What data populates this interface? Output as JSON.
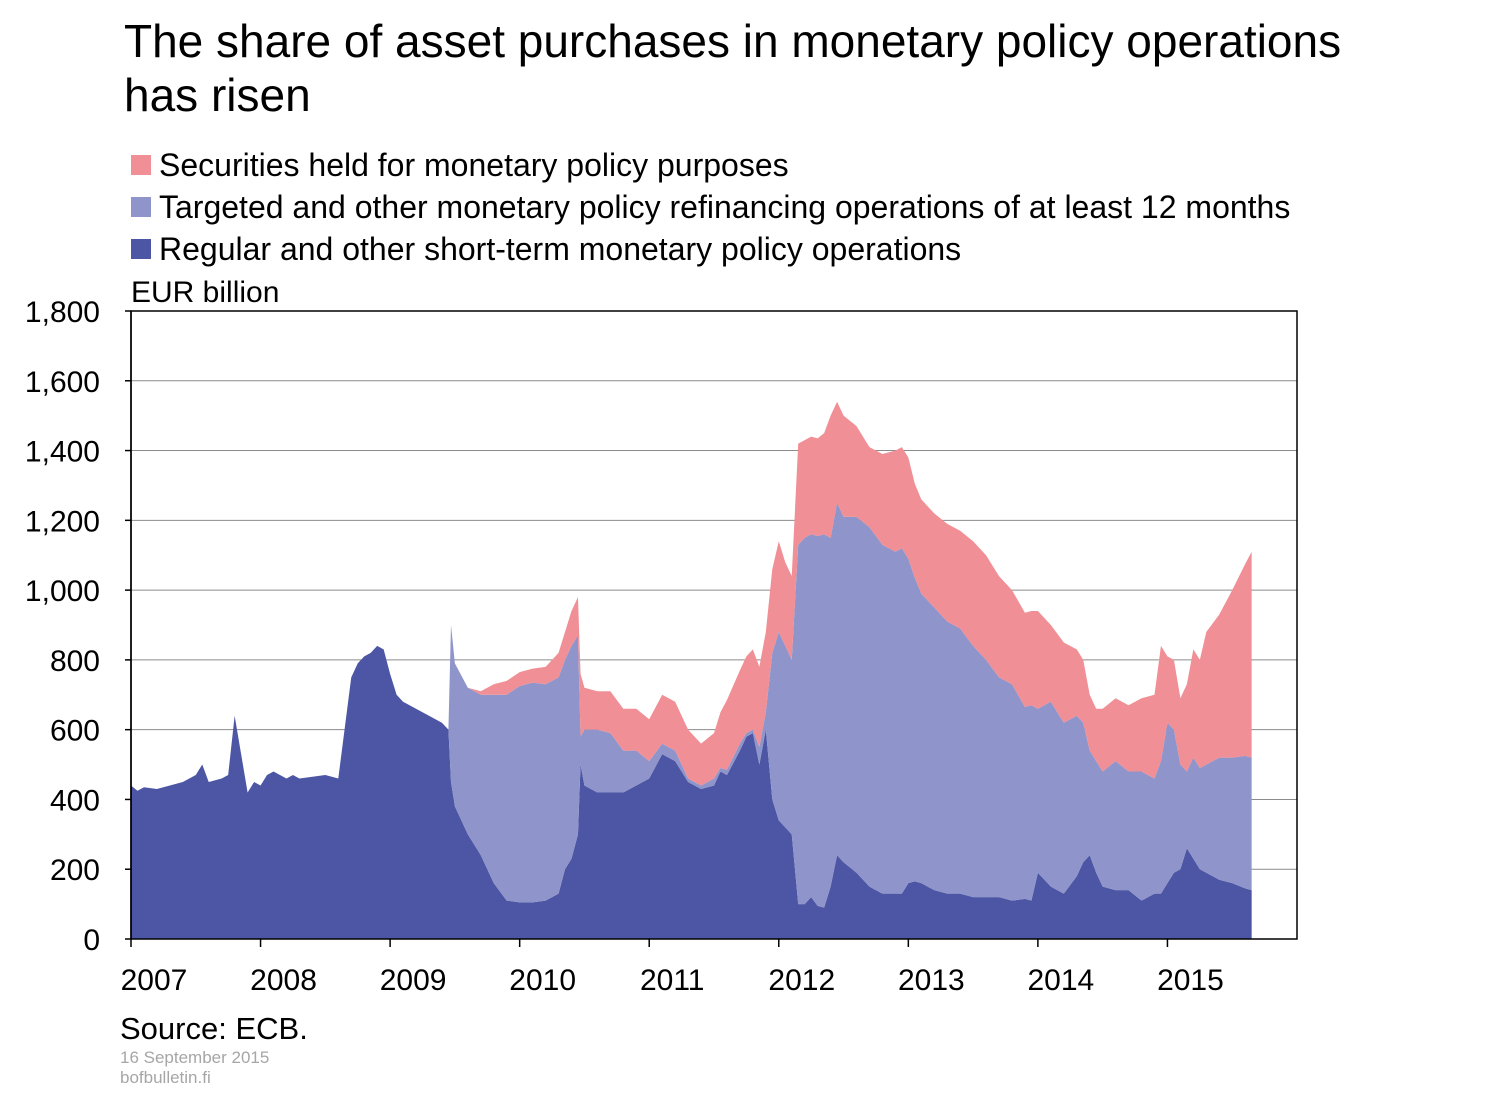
{
  "title": "The share of asset purchases in monetary policy operations has risen",
  "legend": [
    {
      "label": "Securities held for monetary policy purposes",
      "color": "#f08f95"
    },
    {
      "label": "Targeted and other monetary policy refinancing operations of at least 12 months",
      "color": "#8f95cb"
    },
    {
      "label": "Regular and other short-term monetary policy operations",
      "color": "#4c56a4"
    }
  ],
  "unit_label": "EUR billion",
  "source": "Source:  ECB.",
  "date": "16 September 2015",
  "site": "bofbulletin.fi",
  "chart_data": {
    "type": "area",
    "stacked": true,
    "title": "The share of asset purchases in monetary policy operations has risen",
    "ylabel": "EUR billion",
    "ylim": [
      0,
      1800
    ],
    "yticks": [
      0,
      200,
      400,
      600,
      800,
      1000,
      1200,
      1400,
      1600,
      1800
    ],
    "ytick_labels": [
      "0",
      "200",
      "400",
      "600",
      "800",
      "1,000",
      "1,200",
      "1,400",
      "1,600",
      "1,800"
    ],
    "xlim": [
      2007.0,
      2016.0
    ],
    "xticks": [
      2007,
      2008,
      2009,
      2010,
      2011,
      2012,
      2013,
      2014,
      2015
    ],
    "xtick_labels": [
      "2007",
      "2008",
      "2009",
      "2010",
      "2011",
      "2012",
      "2013",
      "2014",
      "2015"
    ],
    "grid": true,
    "legend_position": "top",
    "x": [
      2007.0,
      2007.05,
      2007.1,
      2007.2,
      2007.3,
      2007.4,
      2007.5,
      2007.55,
      2007.6,
      2007.7,
      2007.75,
      2007.8,
      2007.9,
      2007.95,
      2008.0,
      2008.05,
      2008.1,
      2008.2,
      2008.25,
      2008.3,
      2008.4,
      2008.5,
      2008.6,
      2008.7,
      2008.75,
      2008.8,
      2008.85,
      2008.9,
      2008.95,
      2009.0,
      2009.05,
      2009.1,
      2009.2,
      2009.3,
      2009.4,
      2009.45,
      2009.47,
      2009.5,
      2009.6,
      2009.7,
      2009.8,
      2009.9,
      2010.0,
      2010.1,
      2010.2,
      2010.3,
      2010.35,
      2010.4,
      2010.45,
      2010.47,
      2010.5,
      2010.6,
      2010.7,
      2010.8,
      2010.9,
      2011.0,
      2011.1,
      2011.2,
      2011.3,
      2011.4,
      2011.5,
      2011.55,
      2011.6,
      2011.7,
      2011.75,
      2011.8,
      2011.85,
      2011.9,
      2011.95,
      2012.0,
      2012.05,
      2012.1,
      2012.15,
      2012.2,
      2012.25,
      2012.3,
      2012.35,
      2012.4,
      2012.45,
      2012.5,
      2012.6,
      2012.7,
      2012.8,
      2012.9,
      2012.95,
      2013.0,
      2013.05,
      2013.1,
      2013.2,
      2013.3,
      2013.4,
      2013.5,
      2013.6,
      2013.7,
      2013.8,
      2013.9,
      2013.95,
      2014.0,
      2014.1,
      2014.2,
      2014.3,
      2014.35,
      2014.4,
      2014.45,
      2014.5,
      2014.6,
      2014.7,
      2014.8,
      2014.9,
      2014.95,
      2015.0,
      2015.05,
      2015.1,
      2015.15,
      2015.2,
      2015.25,
      2015.3,
      2015.4,
      2015.5,
      2015.6,
      2015.65
    ],
    "series": [
      {
        "name": "Regular and other short-term monetary policy operations",
        "color": "#4c56a4",
        "values": [
          440,
          425,
          435,
          430,
          440,
          450,
          470,
          500,
          450,
          460,
          470,
          640,
          420,
          450,
          440,
          470,
          480,
          460,
          470,
          460,
          465,
          470,
          460,
          750,
          790,
          810,
          820,
          840,
          830,
          760,
          700,
          680,
          660,
          640,
          620,
          600,
          450,
          380,
          300,
          240,
          160,
          110,
          105,
          105,
          110,
          130,
          200,
          230,
          300,
          500,
          440,
          420,
          420,
          420,
          440,
          460,
          530,
          510,
          450,
          430,
          440,
          480,
          470,
          540,
          580,
          590,
          500,
          600,
          400,
          340,
          320,
          300,
          100,
          100,
          120,
          95,
          90,
          150,
          240,
          220,
          190,
          150,
          130,
          130,
          130,
          160,
          165,
          160,
          140,
          130,
          130,
          120,
          120,
          120,
          110,
          115,
          110,
          190,
          150,
          130,
          180,
          220,
          240,
          190,
          150,
          140,
          140,
          110,
          130,
          130,
          160,
          190,
          200,
          260,
          230,
          200,
          190,
          170,
          160,
          145,
          140
        ]
      },
      {
        "name": "Targeted and other monetary policy refinancing operations of at least 12 months",
        "color": "#8f95cb",
        "values": [
          0,
          0,
          0,
          0,
          0,
          0,
          0,
          0,
          0,
          0,
          0,
          0,
          0,
          0,
          0,
          0,
          0,
          0,
          0,
          0,
          0,
          0,
          0,
          0,
          0,
          0,
          0,
          0,
          0,
          0,
          0,
          0,
          0,
          0,
          0,
          0,
          450,
          410,
          420,
          460,
          540,
          590,
          620,
          630,
          620,
          620,
          600,
          610,
          570,
          80,
          160,
          180,
          170,
          120,
          100,
          50,
          30,
          30,
          10,
          10,
          20,
          10,
          15,
          20,
          10,
          10,
          50,
          50,
          420,
          540,
          520,
          500,
          1030,
          1050,
          1040,
          1060,
          1070,
          1000,
          1010,
          990,
          1020,
          1030,
          1000,
          980,
          990,
          930,
          870,
          830,
          810,
          780,
          760,
          720,
          680,
          630,
          620,
          550,
          560,
          470,
          530,
          490,
          460,
          400,
          300,
          320,
          330,
          370,
          340,
          370,
          330,
          380,
          460,
          410,
          300,
          220,
          290,
          290,
          310,
          350,
          360,
          380,
          380
        ]
      },
      {
        "name": "Securities held for monetary policy purposes",
        "color": "#f08f95",
        "values": [
          0,
          0,
          0,
          0,
          0,
          0,
          0,
          0,
          0,
          0,
          0,
          0,
          0,
          0,
          0,
          0,
          0,
          0,
          0,
          0,
          0,
          0,
          0,
          0,
          0,
          0,
          0,
          0,
          0,
          0,
          0,
          0,
          0,
          0,
          0,
          0,
          0,
          0,
          0,
          10,
          30,
          40,
          40,
          40,
          50,
          70,
          80,
          100,
          110,
          180,
          120,
          110,
          120,
          120,
          120,
          120,
          140,
          140,
          140,
          120,
          130,
          160,
          200,
          210,
          220,
          230,
          230,
          230,
          240,
          260,
          240,
          240,
          290,
          280,
          280,
          280,
          290,
          350,
          290,
          290,
          260,
          230,
          260,
          290,
          290,
          290,
          270,
          270,
          270,
          280,
          280,
          300,
          300,
          290,
          270,
          270,
          270,
          280,
          220,
          230,
          190,
          180,
          160,
          150,
          180,
          180,
          190,
          210,
          240,
          330,
          190,
          200,
          190,
          250,
          310,
          310,
          380,
          410,
          480,
          550,
          590
        ]
      }
    ]
  }
}
